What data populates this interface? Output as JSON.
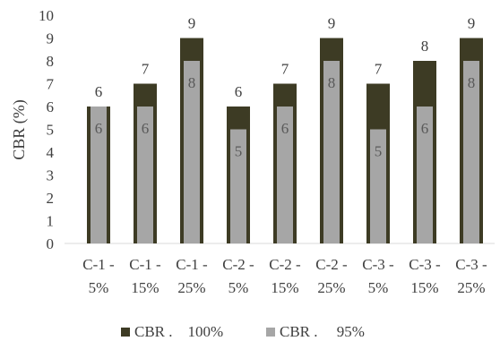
{
  "chart_data": {
    "type": "bar",
    "ylabel": "CBR (%)",
    "ylim": [
      0,
      10
    ],
    "yticks": [
      "0",
      "1",
      "2",
      "3",
      "4",
      "5",
      "6",
      "7",
      "8",
      "9",
      "10"
    ],
    "grid": false,
    "legend_position": "bottom",
    "categories": [
      [
        "C-1 -",
        "5%"
      ],
      [
        "C-1 -",
        "15%"
      ],
      [
        "C-1 -",
        "25%"
      ],
      [
        "C-2 -",
        "5%"
      ],
      [
        "C-2 -",
        "15%"
      ],
      [
        "C-2 -",
        "25%"
      ],
      [
        "C-3 -",
        "5%"
      ],
      [
        "C-3 -",
        "15%"
      ],
      [
        "C-3 -",
        "25%"
      ]
    ],
    "series": [
      {
        "name": "CBR .    100%",
        "color": "#3d3b24",
        "label_color": "#404040",
        "values": [
          6,
          7,
          9,
          6,
          7,
          9,
          7,
          8,
          9
        ]
      },
      {
        "name": "CBR .     95%",
        "color": "#a6a6a6",
        "label_color": "#595959",
        "values": [
          6,
          6,
          8,
          5,
          6,
          8,
          5,
          6,
          8
        ]
      }
    ]
  }
}
